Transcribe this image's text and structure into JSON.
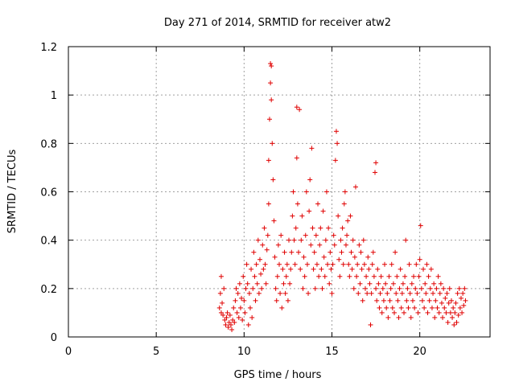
{
  "chart_data": {
    "type": "scatter",
    "title": "Day 271 of 2014, SRMTID for receiver atw2",
    "xlabel": "GPS time / hours",
    "ylabel": "SRMTID / TECUs",
    "xlim": [
      0,
      24
    ],
    "ylim": [
      0,
      1.2
    ],
    "xticks": [
      0,
      5,
      10,
      15,
      20
    ],
    "xtick_labels": [
      "0",
      "5",
      "10",
      "15",
      "20"
    ],
    "yticks": [
      0,
      0.2,
      0.4,
      0.6,
      0.8,
      1,
      1.2
    ],
    "ytick_labels": [
      "0",
      "0.2",
      "0.4",
      "0.6",
      "0.8",
      "1",
      "1.2"
    ],
    "grid": true,
    "marker": "+",
    "color": "#e00000",
    "series": [
      {
        "name": "SRMTID atw2",
        "points": [
          [
            8.6,
            0.12
          ],
          [
            8.65,
            0.18
          ],
          [
            8.7,
            0.1
          ],
          [
            8.7,
            0.25
          ],
          [
            8.75,
            0.14
          ],
          [
            8.8,
            0.09
          ],
          [
            8.85,
            0.2
          ],
          [
            8.9,
            0.07
          ],
          [
            8.95,
            0.05
          ],
          [
            9.0,
            0.08
          ],
          [
            9.05,
            0.1
          ],
          [
            9.1,
            0.04
          ],
          [
            9.15,
            0.06
          ],
          [
            9.2,
            0.09
          ],
          [
            9.25,
            0.05
          ],
          [
            9.3,
            0.03
          ],
          [
            9.35,
            0.07
          ],
          [
            9.4,
            0.12
          ],
          [
            9.45,
            0.06
          ],
          [
            9.5,
            0.15
          ],
          [
            9.55,
            0.2
          ],
          [
            9.6,
            0.1
          ],
          [
            9.65,
            0.18
          ],
          [
            9.7,
            0.08
          ],
          [
            9.75,
            0.22
          ],
          [
            9.8,
            0.12
          ],
          [
            9.85,
            0.16
          ],
          [
            9.9,
            0.07
          ],
          [
            9.95,
            0.25
          ],
          [
            10.0,
            0.15
          ],
          [
            10.05,
            0.1
          ],
          [
            10.1,
            0.2
          ],
          [
            10.15,
            0.3
          ],
          [
            10.2,
            0.22
          ],
          [
            10.25,
            0.05
          ],
          [
            10.3,
            0.18
          ],
          [
            10.35,
            0.12
          ],
          [
            10.4,
            0.28
          ],
          [
            10.45,
            0.08
          ],
          [
            10.5,
            0.2
          ],
          [
            10.55,
            0.35
          ],
          [
            10.6,
            0.25
          ],
          [
            10.65,
            0.15
          ],
          [
            10.7,
            0.3
          ],
          [
            10.75,
            0.22
          ],
          [
            10.8,
            0.4
          ],
          [
            10.85,
            0.18
          ],
          [
            10.9,
            0.32
          ],
          [
            10.95,
            0.26
          ],
          [
            11.0,
            0.2
          ],
          [
            11.05,
            0.38
          ],
          [
            11.1,
            0.28
          ],
          [
            11.15,
            0.45
          ],
          [
            11.2,
            0.3
          ],
          [
            11.25,
            0.22
          ],
          [
            11.3,
            0.36
          ],
          [
            11.35,
            0.42
          ],
          [
            11.4,
            0.55
          ],
          [
            11.4,
            0.73
          ],
          [
            11.45,
            0.9
          ],
          [
            11.5,
            1.05
          ],
          [
            11.5,
            1.13
          ],
          [
            11.55,
            0.98
          ],
          [
            11.55,
            1.12
          ],
          [
            11.6,
            0.8
          ],
          [
            11.65,
            0.65
          ],
          [
            11.7,
            0.48
          ],
          [
            11.75,
            0.33
          ],
          [
            11.8,
            0.2
          ],
          [
            11.85,
            0.15
          ],
          [
            11.9,
            0.25
          ],
          [
            11.95,
            0.38
          ],
          [
            12.0,
            0.3
          ],
          [
            12.05,
            0.18
          ],
          [
            12.1,
            0.42
          ],
          [
            12.15,
            0.12
          ],
          [
            12.2,
            0.28
          ],
          [
            12.25,
            0.22
          ],
          [
            12.3,
            0.35
          ],
          [
            12.35,
            0.18
          ],
          [
            12.4,
            0.25
          ],
          [
            12.45,
            0.3
          ],
          [
            12.5,
            0.15
          ],
          [
            12.55,
            0.4
          ],
          [
            12.6,
            0.22
          ],
          [
            12.65,
            0.28
          ],
          [
            12.7,
            0.35
          ],
          [
            12.75,
            0.5
          ],
          [
            12.8,
            0.6
          ],
          [
            12.85,
            0.4
          ],
          [
            12.9,
            0.3
          ],
          [
            12.95,
            0.45
          ],
          [
            13.0,
            0.74
          ],
          [
            13.0,
            0.95
          ],
          [
            13.05,
            0.55
          ],
          [
            13.1,
            0.35
          ],
          [
            13.15,
            0.94
          ],
          [
            13.2,
            0.28
          ],
          [
            13.25,
            0.4
          ],
          [
            13.3,
            0.5
          ],
          [
            13.35,
            0.2
          ],
          [
            13.4,
            0.33
          ],
          [
            13.45,
            0.25
          ],
          [
            13.5,
            0.42
          ],
          [
            13.55,
            0.6
          ],
          [
            13.6,
            0.3
          ],
          [
            13.65,
            0.18
          ],
          [
            13.7,
            0.52
          ],
          [
            13.75,
            0.65
          ],
          [
            13.8,
            0.38
          ],
          [
            13.85,
            0.78
          ],
          [
            13.9,
            0.45
          ],
          [
            13.95,
            0.28
          ],
          [
            14.0,
            0.35
          ],
          [
            14.05,
            0.2
          ],
          [
            14.1,
            0.42
          ],
          [
            14.15,
            0.3
          ],
          [
            14.2,
            0.55
          ],
          [
            14.25,
            0.25
          ],
          [
            14.3,
            0.38
          ],
          [
            14.35,
            0.45
          ],
          [
            14.4,
            0.28
          ],
          [
            14.45,
            0.2
          ],
          [
            14.5,
            0.52
          ],
          [
            14.55,
            0.33
          ],
          [
            14.6,
            0.25
          ],
          [
            14.65,
            0.4
          ],
          [
            14.7,
            0.6
          ],
          [
            14.75,
            0.3
          ],
          [
            14.8,
            0.45
          ],
          [
            14.85,
            0.22
          ],
          [
            14.9,
            0.35
          ],
          [
            14.95,
            0.28
          ],
          [
            15.0,
            0.18
          ],
          [
            15.05,
            0.3
          ],
          [
            15.1,
            0.42
          ],
          [
            15.15,
            0.38
          ],
          [
            15.2,
            0.73
          ],
          [
            15.25,
            0.85
          ],
          [
            15.3,
            0.8
          ],
          [
            15.35,
            0.5
          ],
          [
            15.4,
            0.32
          ],
          [
            15.45,
            0.25
          ],
          [
            15.5,
            0.4
          ],
          [
            15.55,
            0.35
          ],
          [
            15.6,
            0.45
          ],
          [
            15.65,
            0.3
          ],
          [
            15.7,
            0.55
          ],
          [
            15.75,
            0.6
          ],
          [
            15.8,
            0.38
          ],
          [
            15.85,
            0.42
          ],
          [
            15.9,
            0.48
          ],
          [
            15.95,
            0.3
          ],
          [
            16.0,
            0.25
          ],
          [
            16.05,
            0.5
          ],
          [
            16.1,
            0.35
          ],
          [
            16.15,
            0.28
          ],
          [
            16.2,
            0.4
          ],
          [
            16.25,
            0.2
          ],
          [
            16.3,
            0.33
          ],
          [
            16.35,
            0.62
          ],
          [
            16.4,
            0.25
          ],
          [
            16.45,
            0.3
          ],
          [
            16.5,
            0.18
          ],
          [
            16.55,
            0.38
          ],
          [
            16.6,
            0.22
          ],
          [
            16.65,
            0.35
          ],
          [
            16.7,
            0.28
          ],
          [
            16.75,
            0.15
          ],
          [
            16.8,
            0.4
          ],
          [
            16.85,
            0.3
          ],
          [
            16.9,
            0.2
          ],
          [
            16.95,
            0.25
          ],
          [
            17.0,
            0.18
          ],
          [
            17.05,
            0.33
          ],
          [
            17.1,
            0.28
          ],
          [
            17.15,
            0.22
          ],
          [
            17.2,
            0.05
          ],
          [
            17.25,
            0.18
          ],
          [
            17.3,
            0.3
          ],
          [
            17.35,
            0.35
          ],
          [
            17.4,
            0.25
          ],
          [
            17.45,
            0.68
          ],
          [
            17.5,
            0.72
          ],
          [
            17.5,
            0.2
          ],
          [
            17.55,
            0.15
          ],
          [
            17.6,
            0.28
          ],
          [
            17.65,
            0.22
          ],
          [
            17.7,
            0.12
          ],
          [
            17.75,
            0.18
          ],
          [
            17.8,
            0.25
          ],
          [
            17.85,
            0.1
          ],
          [
            17.9,
            0.2
          ],
          [
            17.95,
            0.15
          ],
          [
            18.0,
            0.3
          ],
          [
            18.05,
            0.22
          ],
          [
            18.1,
            0.12
          ],
          [
            18.15,
            0.18
          ],
          [
            18.2,
            0.08
          ],
          [
            18.25,
            0.25
          ],
          [
            18.3,
            0.15
          ],
          [
            18.35,
            0.2
          ],
          [
            18.4,
            0.3
          ],
          [
            18.45,
            0.12
          ],
          [
            18.5,
            0.22
          ],
          [
            18.55,
            0.1
          ],
          [
            18.6,
            0.35
          ],
          [
            18.65,
            0.18
          ],
          [
            18.7,
            0.25
          ],
          [
            18.75,
            0.15
          ],
          [
            18.8,
            0.08
          ],
          [
            18.85,
            0.2
          ],
          [
            18.9,
            0.28
          ],
          [
            18.95,
            0.12
          ],
          [
            19.0,
            0.18
          ],
          [
            19.05,
            0.22
          ],
          [
            19.1,
            0.1
          ],
          [
            19.15,
            0.25
          ],
          [
            19.2,
            0.4
          ],
          [
            19.25,
            0.15
          ],
          [
            19.3,
            0.2
          ],
          [
            19.35,
            0.12
          ],
          [
            19.4,
            0.3
          ],
          [
            19.45,
            0.18
          ],
          [
            19.5,
            0.08
          ],
          [
            19.55,
            0.22
          ],
          [
            19.6,
            0.15
          ],
          [
            19.65,
            0.25
          ],
          [
            19.7,
            0.12
          ],
          [
            19.75,
            0.2
          ],
          [
            19.8,
            0.3
          ],
          [
            19.85,
            0.18
          ],
          [
            19.9,
            0.1
          ],
          [
            19.95,
            0.25
          ],
          [
            20.0,
            0.32
          ],
          [
            20.05,
            0.46
          ],
          [
            20.1,
            0.2
          ],
          [
            20.15,
            0.15
          ],
          [
            20.2,
            0.28
          ],
          [
            20.25,
            0.12
          ],
          [
            20.3,
            0.22
          ],
          [
            20.35,
            0.18
          ],
          [
            20.4,
            0.3
          ],
          [
            20.45,
            0.1
          ],
          [
            20.5,
            0.25
          ],
          [
            20.55,
            0.15
          ],
          [
            20.6,
            0.2
          ],
          [
            20.65,
            0.28
          ],
          [
            20.7,
            0.12
          ],
          [
            20.75,
            0.18
          ],
          [
            20.8,
            0.22
          ],
          [
            20.85,
            0.08
          ],
          [
            20.9,
            0.15
          ],
          [
            20.95,
            0.2
          ],
          [
            21.0,
            0.12
          ],
          [
            21.05,
            0.25
          ],
          [
            21.1,
            0.1
          ],
          [
            21.15,
            0.18
          ],
          [
            21.2,
            0.22
          ],
          [
            21.25,
            0.14
          ],
          [
            21.3,
            0.08
          ],
          [
            21.35,
            0.2
          ],
          [
            21.4,
            0.12
          ],
          [
            21.45,
            0.16
          ],
          [
            21.5,
            0.1
          ],
          [
            21.55,
            0.18
          ],
          [
            21.6,
            0.06
          ],
          [
            21.65,
            0.14
          ],
          [
            21.7,
            0.2
          ],
          [
            21.75,
            0.1
          ],
          [
            21.8,
            0.15
          ],
          [
            21.85,
            0.08
          ],
          [
            21.9,
            0.12
          ],
          [
            21.95,
            0.05
          ],
          [
            22.0,
            0.1
          ],
          [
            22.05,
            0.14
          ],
          [
            22.1,
            0.06
          ],
          [
            22.15,
            0.18
          ],
          [
            22.2,
            0.09
          ],
          [
            22.25,
            0.2
          ],
          [
            22.3,
            0.12
          ],
          [
            22.35,
            0.16
          ],
          [
            22.4,
            0.1
          ],
          [
            22.45,
            0.18
          ],
          [
            22.5,
            0.13
          ],
          [
            22.55,
            0.2
          ],
          [
            22.6,
            0.15
          ]
        ]
      }
    ]
  }
}
